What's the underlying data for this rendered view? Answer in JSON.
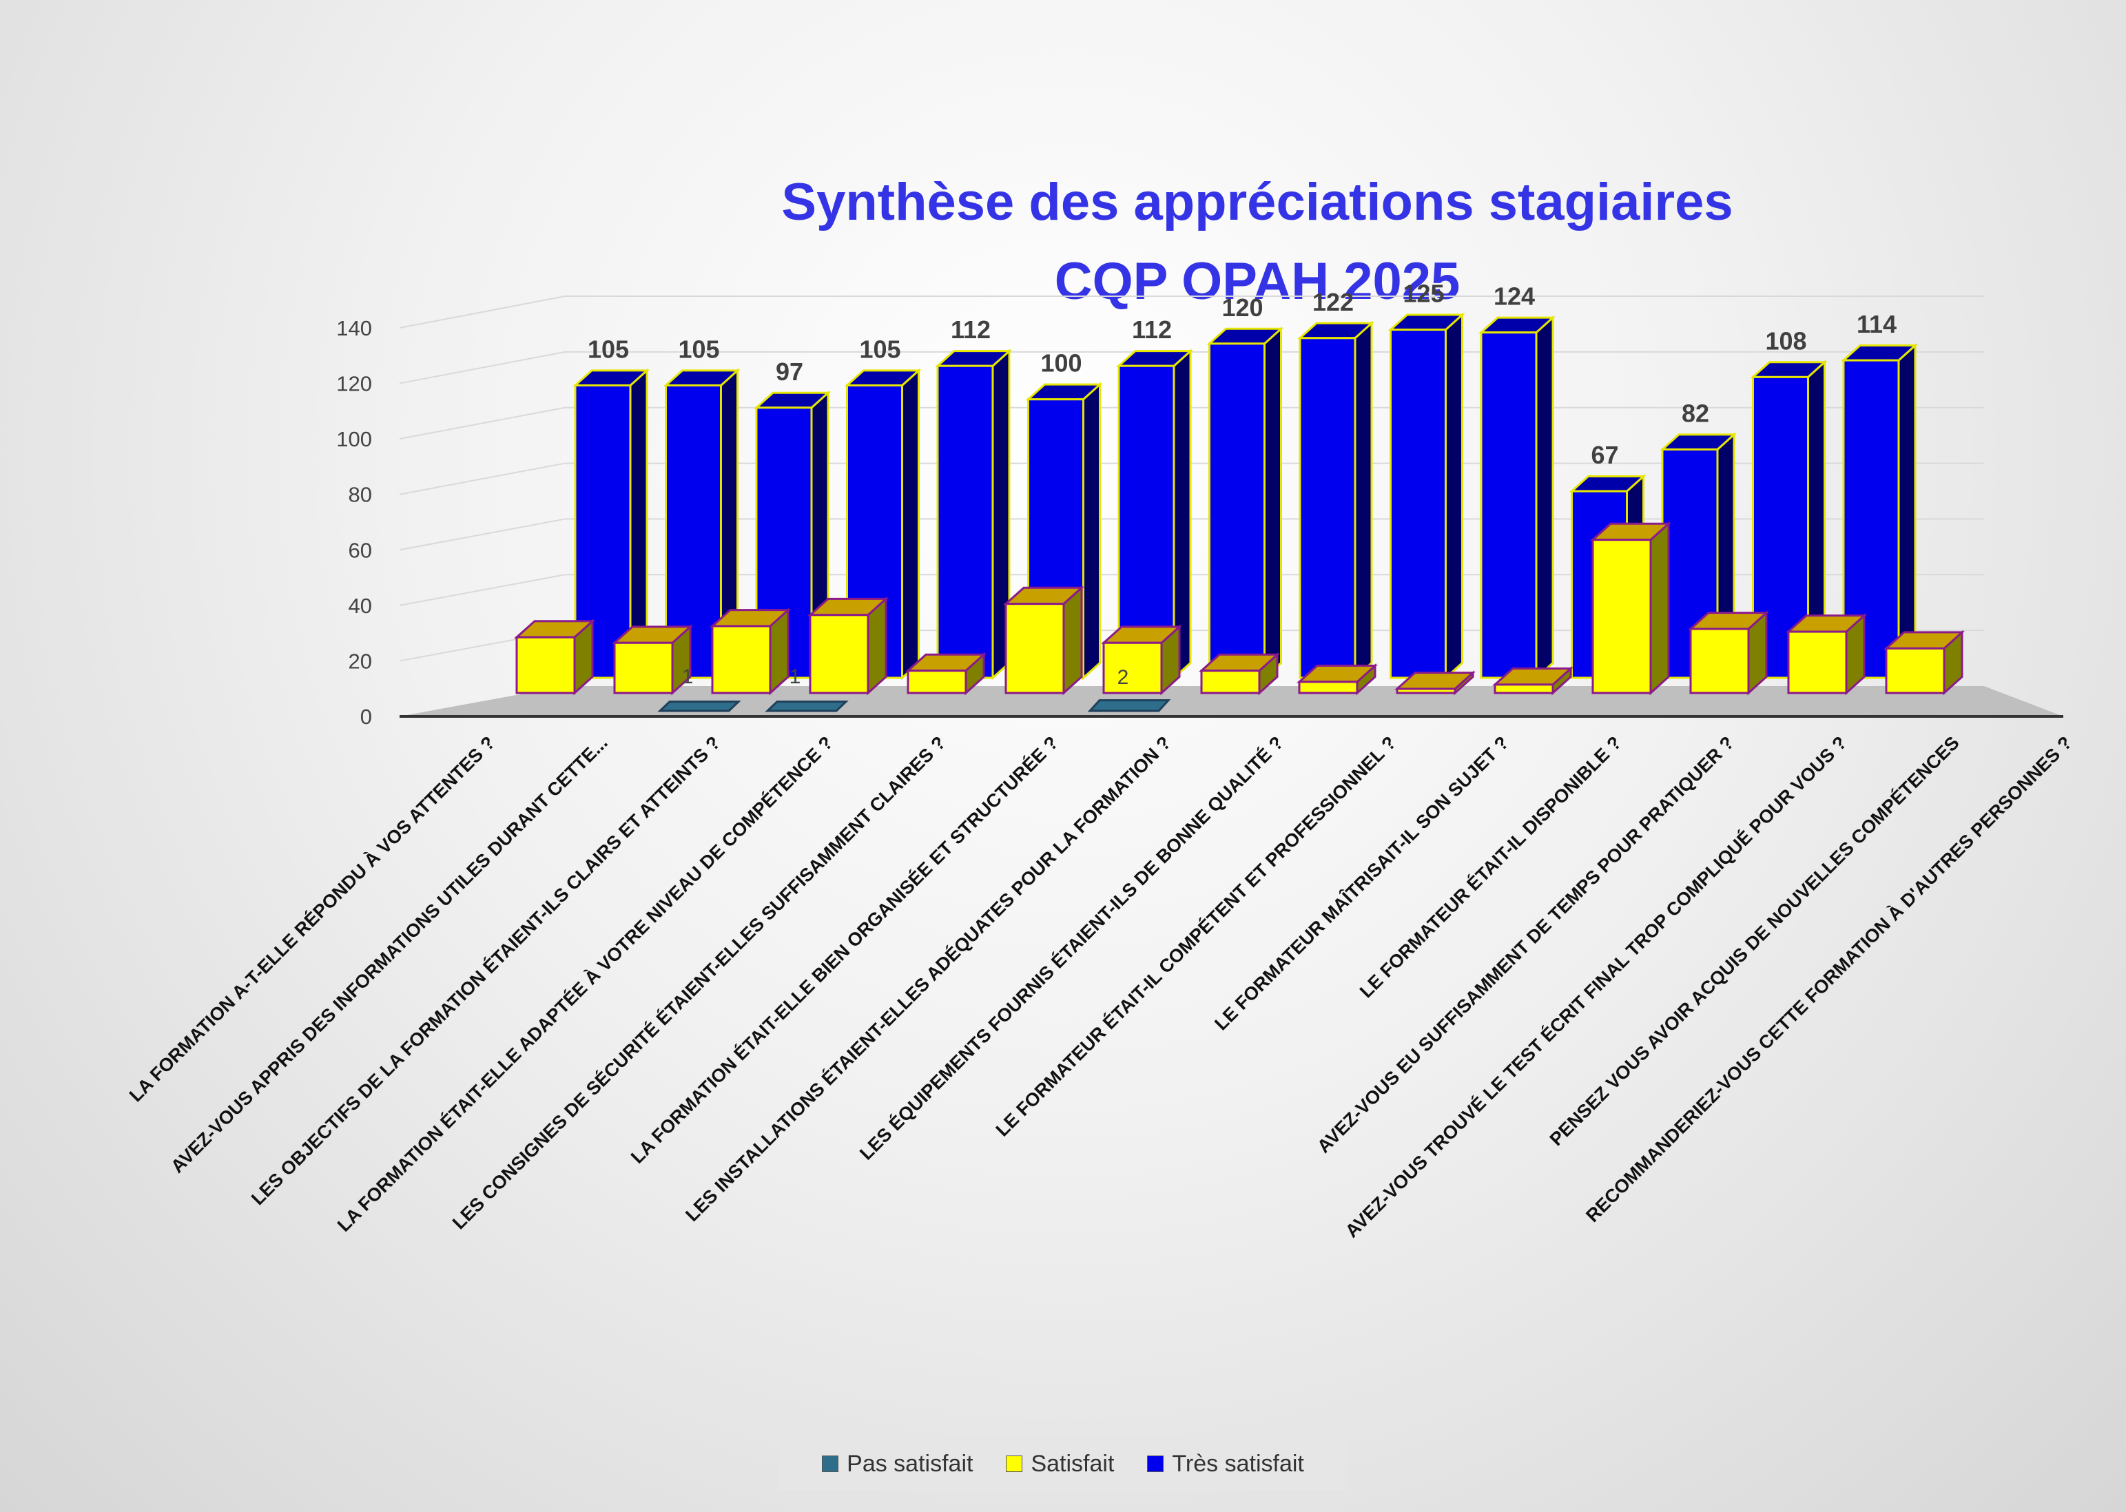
{
  "title_line1": "Synthèse des appréciations stagiaires",
  "title_line2": "CQP OPAH 2025",
  "chart_data": {
    "type": "bar",
    "title": "Synthèse des appréciations stagiaires CQP OPAH 2025",
    "ylim": [
      0,
      140
    ],
    "yticks": [
      0,
      20,
      40,
      60,
      80,
      100,
      120,
      140
    ],
    "grid": true,
    "legend_position": "bottom",
    "categories": [
      "LA FORMATION A-T-ELLE RÉPONDU À VOS ATTENTES ?",
      "AVEZ-VOUS APPRIS DES INFORMATIONS UTILES DURANT CETTE...",
      "LES OBJECTIFS DE LA FORMATION ÉTAIENT-ILS CLAIRS ET ATTEINTS ?",
      "LA FORMATION ÉTAIT-ELLE ADAPTÉE À VOTRE NIVEAU DE COMPÉTENCE ?",
      "LES CONSIGNES DE SÉCURITÉ ÉTAIENT-ELLES SUFFISAMMENT CLAIRES ?",
      "LA FORMATION ÉTAIT-ELLE BIEN ORGANISÉE ET STRUCTURÉE ?",
      "LES INSTALLATIONS ÉTAIENT-ELLES ADÉQUATES POUR LA FORMATION ?",
      "LES ÉQUIPEMENTS FOURNIS ÉTAIENT-ILS DE BONNE QUALITÉ ?",
      "LE FORMATEUR ÉTAIT-IL COMPÉTENT ET PROFESSIONNEL ?",
      "LE FORMATEUR MAÎTRISAIT-IL SON SUJET ?",
      "LE FORMATEUR ÉTAIT-IL DISPONIBLE ?",
      "AVEZ-VOUS EU SUFFISAMMENT DE TEMPS POUR PRATIQUER ?",
      "AVEZ-VOUS TROUVÉ LE TEST ÉCRIT  FINAL TROP COMPLIQUÉ POUR VOUS ?",
      "PENSEZ VOUS AVOIR ACQUIS DE NOUVELLES COMPÉTENCES",
      "RECOMMANDERIEZ-VOUS CETTE FORMATION À D'AUTRES PERSONNES ?"
    ],
    "series": [
      {
        "name": "Pas satisfait",
        "color": "#2e6e8a",
        "values": [
          0,
          0,
          1,
          1,
          0,
          0,
          2,
          0,
          0,
          0,
          0,
          0,
          0,
          0,
          0
        ],
        "labels": [
          "",
          "",
          "1",
          "1",
          "",
          "",
          "2",
          "",
          "",
          "",
          "",
          "",
          "",
          "",
          ""
        ]
      },
      {
        "name": "Satisfait",
        "color": "#ffff00",
        "values": [
          20,
          18,
          24,
          28,
          8,
          32,
          18,
          8,
          4,
          1,
          3,
          55,
          23,
          22,
          16
        ]
      },
      {
        "name": "Très satisfait",
        "color": "#0000ee",
        "values": [
          105,
          105,
          97,
          105,
          112,
          100,
          112,
          120,
          122,
          125,
          124,
          67,
          82,
          108,
          114
        ]
      }
    ]
  },
  "legend": [
    {
      "label": "Pas satisfait",
      "color": "#2e6e8a"
    },
    {
      "label": "Satisfait",
      "color": "#ffff00"
    },
    {
      "label": "Très satisfait",
      "color": "#0000ee"
    }
  ]
}
